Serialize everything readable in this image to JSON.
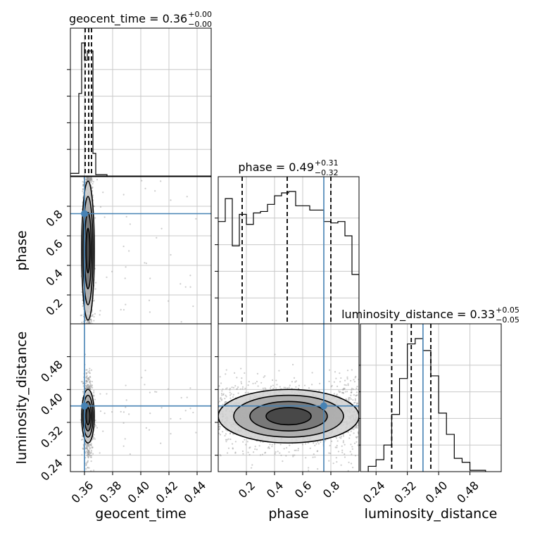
{
  "chart_data": {
    "type": "corner",
    "parameters": [
      "geocent_time",
      "phase",
      "luminosity_distance"
    ],
    "truths": {
      "geocent_time": 0.36,
      "phase": 0.75,
      "luminosity_distance": 0.36
    },
    "truth_color": "#4682b4",
    "hist_color": "#000000",
    "grid": true,
    "titles": [
      {
        "param": "geocent_time",
        "text": "geocent_time = 0.36",
        "plus": "+0.00",
        "minus": "−0.00"
      },
      {
        "param": "phase",
        "text": "phase = 0.49",
        "plus": "+0.31",
        "minus": "−0.32"
      },
      {
        "param": "luminosity_distance",
        "text": "luminosity_distance = 0.33",
        "plus": "+0.05",
        "minus": "−0.05"
      }
    ],
    "axes": {
      "geocent_time": {
        "range": [
          0.35,
          0.45
        ],
        "ticks": [
          0.36,
          0.38,
          0.4,
          0.42,
          0.44
        ],
        "tick_labels": [
          "0.36",
          "0.38",
          "0.40",
          "0.42",
          "0.44"
        ],
        "label": "geocent_time"
      },
      "phase": {
        "range": [
          0.0,
          1.0
        ],
        "ticks": [
          0.2,
          0.4,
          0.6,
          0.8
        ],
        "tick_labels": [
          "0.2",
          "0.4",
          "0.6",
          "0.8"
        ],
        "label": "phase"
      },
      "luminosity_distance": {
        "range": [
          0.2,
          0.56
        ],
        "ticks": [
          0.24,
          0.32,
          0.4,
          0.48
        ],
        "tick_labels": [
          "0.24",
          "0.32",
          "0.40",
          "0.48"
        ],
        "label": "luminosity_distance"
      }
    },
    "histograms": [
      {
        "param": "geocent_time",
        "bin_edges": [
          0.35,
          0.356,
          0.358,
          0.36,
          0.362,
          0.364,
          0.366,
          0.368,
          0.376
        ],
        "counts": [
          0.02,
          0.62,
          1.0,
          0.87,
          0.94,
          0.94,
          0.17,
          0.01
        ],
        "quantiles": [
          0.3605,
          0.363,
          0.365
        ]
      },
      {
        "param": "phase",
        "bin_edges": [
          0.0,
          0.05,
          0.1,
          0.15,
          0.2,
          0.25,
          0.3,
          0.35,
          0.4,
          0.45,
          0.5,
          0.55,
          0.6,
          0.65,
          0.7,
          0.75,
          0.8,
          0.85,
          0.9,
          0.95,
          1.0
        ],
        "counts": [
          0.72,
          0.88,
          0.55,
          0.77,
          0.7,
          0.78,
          0.79,
          0.84,
          0.9,
          0.92,
          0.93,
          0.83,
          0.83,
          0.8,
          0.8,
          0.72,
          0.71,
          0.72,
          0.62,
          0.35
        ],
        "quantiles": [
          0.17,
          0.49,
          0.8
        ]
      },
      {
        "param": "luminosity_distance",
        "bin_edges": [
          0.22,
          0.24,
          0.26,
          0.28,
          0.3,
          0.32,
          0.34,
          0.36,
          0.38,
          0.4,
          0.42,
          0.44,
          0.46,
          0.48,
          0.5,
          0.52
        ],
        "counts": [
          0.04,
          0.09,
          0.2,
          0.43,
          0.7,
          0.96,
          1.0,
          0.91,
          0.72,
          0.44,
          0.28,
          0.1,
          0.07,
          0.01,
          0.01
        ],
        "quantiles": [
          0.28,
          0.33,
          0.38
        ]
      }
    ],
    "quantile_levels": [
      0.16,
      0.5,
      0.84
    ],
    "scatter_pairs": [
      {
        "x": "geocent_time",
        "y": "phase"
      },
      {
        "x": "geocent_time",
        "y": "luminosity_distance"
      },
      {
        "x": "phase",
        "y": "luminosity_distance"
      }
    ]
  }
}
